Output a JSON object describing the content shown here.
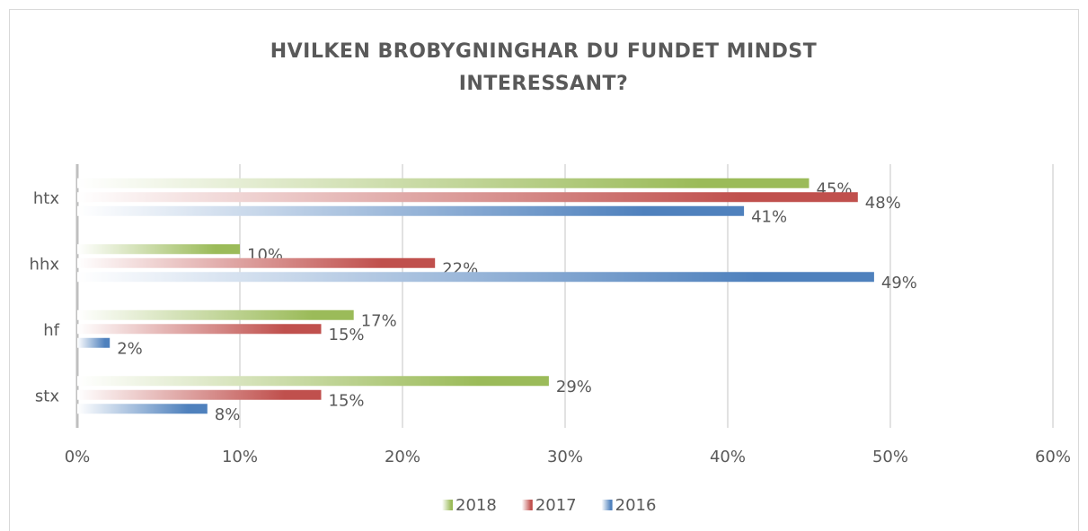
{
  "chart_data": {
    "type": "bar",
    "orientation": "horizontal",
    "title": "HVILKEN BROBYGNINGHAR DU FUNDET MINDST INTERESSANT?",
    "categories": [
      "htx",
      "hhx",
      "hf",
      "stx"
    ],
    "series": [
      {
        "name": "2018",
        "color": "#9bbb59",
        "values": [
          45,
          10,
          17,
          29
        ],
        "value_labels": [
          "45%",
          "10%",
          "17%",
          "29%"
        ]
      },
      {
        "name": "2017",
        "color": "#c0504d",
        "values": [
          48,
          22,
          15,
          15
        ],
        "value_labels": [
          "48%",
          "22%",
          "15%",
          "15%"
        ]
      },
      {
        "name": "2016",
        "color": "#4f81bd",
        "values": [
          41,
          49,
          2,
          8
        ],
        "value_labels": [
          "41%",
          "49%",
          "2%",
          "8%"
        ]
      }
    ],
    "xlim": [
      0,
      60
    ],
    "xticks": [
      {
        "value": 0,
        "label": "0%"
      },
      {
        "value": 10,
        "label": "10%"
      },
      {
        "value": 20,
        "label": "20%"
      },
      {
        "value": 30,
        "label": "30%"
      },
      {
        "value": 40,
        "label": "40%"
      },
      {
        "value": 50,
        "label": "50%"
      },
      {
        "value": 60,
        "label": "60%"
      }
    ],
    "grid": true,
    "legend": "bottom"
  }
}
